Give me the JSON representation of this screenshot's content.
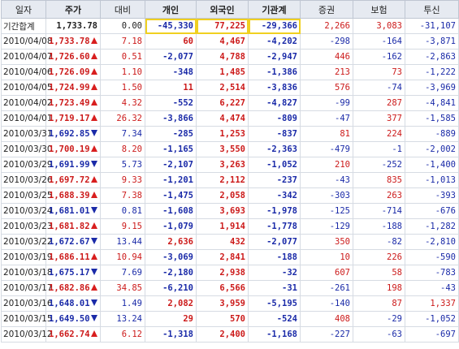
{
  "headers": [
    "일자",
    "주가",
    "대비",
    "개인",
    "외국인",
    "기관계",
    "증권",
    "보험",
    "투신"
  ],
  "summary": {
    "label": "기간합계",
    "price": "1,733.78",
    "change": "0.00",
    "values": [
      "-45,330",
      "77,225",
      "-29,366",
      "2,266",
      "3,083",
      "-31,107"
    ]
  },
  "rows": [
    {
      "date": "2010/04/08",
      "price": "1,733.78",
      "dir": "up",
      "change": "7.18",
      "values": [
        "60",
        "4,467",
        "-4,202",
        "-298",
        "-164",
        "-3,871"
      ]
    },
    {
      "date": "2010/04/07",
      "price": "1,726.60",
      "dir": "up",
      "change": "0.51",
      "values": [
        "-2,077",
        "4,788",
        "-2,947",
        "446",
        "-162",
        "-2,863"
      ]
    },
    {
      "date": "2010/04/06",
      "price": "1,726.09",
      "dir": "up",
      "change": "1.10",
      "values": [
        "-348",
        "1,485",
        "-1,386",
        "213",
        "73",
        "-1,222"
      ]
    },
    {
      "date": "2010/04/05",
      "price": "1,724.99",
      "dir": "up",
      "change": "1.50",
      "values": [
        "11",
        "2,514",
        "-3,836",
        "576",
        "-74",
        "-3,969"
      ]
    },
    {
      "date": "2010/04/02",
      "price": "1,723.49",
      "dir": "up",
      "change": "4.32",
      "values": [
        "-552",
        "6,227",
        "-4,827",
        "-99",
        "287",
        "-4,841"
      ]
    },
    {
      "date": "2010/04/01",
      "price": "1,719.17",
      "dir": "up",
      "change": "26.32",
      "values": [
        "-3,866",
        "4,474",
        "-809",
        "-47",
        "377",
        "-1,585"
      ]
    },
    {
      "date": "2010/03/31",
      "price": "1,692.85",
      "dir": "down",
      "change": "7.34",
      "values": [
        "-285",
        "1,253",
        "-837",
        "81",
        "224",
        "-889"
      ]
    },
    {
      "date": "2010/03/30",
      "price": "1,700.19",
      "dir": "up",
      "change": "8.20",
      "values": [
        "-1,165",
        "3,550",
        "-2,363",
        "-479",
        "-1",
        "-2,002"
      ]
    },
    {
      "date": "2010/03/29",
      "price": "1,691.99",
      "dir": "down",
      "change": "5.73",
      "values": [
        "-2,107",
        "3,263",
        "-1,052",
        "210",
        "-252",
        "-1,400"
      ]
    },
    {
      "date": "2010/03/26",
      "price": "1,697.72",
      "dir": "up",
      "change": "9.33",
      "values": [
        "-1,201",
        "2,112",
        "-237",
        "-43",
        "835",
        "-1,013"
      ]
    },
    {
      "date": "2010/03/25",
      "price": "1,688.39",
      "dir": "up",
      "change": "7.38",
      "values": [
        "-1,475",
        "2,058",
        "-342",
        "-303",
        "263",
        "-393"
      ]
    },
    {
      "date": "2010/03/24",
      "price": "1,681.01",
      "dir": "down",
      "change": "0.81",
      "values": [
        "-1,608",
        "3,693",
        "-1,978",
        "-125",
        "-714",
        "-676"
      ]
    },
    {
      "date": "2010/03/23",
      "price": "1,681.82",
      "dir": "up",
      "change": "9.15",
      "values": [
        "-1,079",
        "1,914",
        "-1,778",
        "-129",
        "-188",
        "-1,282"
      ]
    },
    {
      "date": "2010/03/22",
      "price": "1,672.67",
      "dir": "down",
      "change": "13.44",
      "values": [
        "2,636",
        "432",
        "-2,077",
        "350",
        "-82",
        "-2,810"
      ]
    },
    {
      "date": "2010/03/19",
      "price": "1,686.11",
      "dir": "up",
      "change": "10.94",
      "values": [
        "-3,069",
        "2,841",
        "-188",
        "10",
        "226",
        "-590"
      ]
    },
    {
      "date": "2010/03/18",
      "price": "1,675.17",
      "dir": "down",
      "change": "7.69",
      "values": [
        "-2,180",
        "2,938",
        "-32",
        "607",
        "58",
        "-783"
      ]
    },
    {
      "date": "2010/03/17",
      "price": "1,682.86",
      "dir": "up",
      "change": "34.85",
      "values": [
        "-6,210",
        "6,566",
        "-31",
        "-261",
        "198",
        "-43"
      ]
    },
    {
      "date": "2010/03/16",
      "price": "1,648.01",
      "dir": "down",
      "change": "1.49",
      "values": [
        "2,082",
        "3,959",
        "-5,195",
        "-140",
        "87",
        "1,337"
      ]
    },
    {
      "date": "2010/03/15",
      "price": "1,649.50",
      "dir": "down",
      "change": "13.24",
      "values": [
        "29",
        "570",
        "-524",
        "408",
        "-29",
        "-1,052"
      ]
    },
    {
      "date": "2010/03/12",
      "price": "1,662.74",
      "dir": "up",
      "change": "6.12",
      "values": [
        "-1,318",
        "2,400",
        "-1,168",
        "-227",
        "-63",
        "-697"
      ]
    }
  ],
  "colors": {
    "up": "#cc1a1a",
    "down": "#1a2aa8",
    "highlight": "#f0d020",
    "header_bg": "#e6eaf1"
  }
}
